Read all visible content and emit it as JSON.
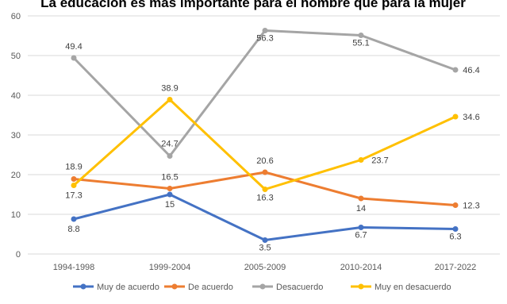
{
  "chart_data": {
    "type": "line",
    "title": "La educación es más importante para el hombre que para la mujer",
    "categories": [
      "1994-1998",
      "1999-2004",
      "2005-2009",
      "2010-2014",
      "2017-2022"
    ],
    "ylim": [
      0,
      60
    ],
    "yticks": [
      0,
      10,
      20,
      30,
      40,
      50,
      60
    ],
    "grid": true,
    "legend_position": "bottom",
    "series": [
      {
        "name": "Muy de acuerdo",
        "color": "#4472C4",
        "values": [
          8.8,
          15,
          3.5,
          6.7,
          6.3
        ]
      },
      {
        "name": "De acuerdo",
        "color": "#ED7D31",
        "values": [
          18.9,
          16.5,
          20.6,
          14,
          12.3
        ]
      },
      {
        "name": "Desacuerdo",
        "color": "#A5A5A5",
        "values": [
          49.4,
          24.7,
          56.3,
          55.1,
          46.4
        ]
      },
      {
        "name": "Muy en desacuerdo",
        "color": "#FFC000",
        "values": [
          17.3,
          38.9,
          16.3,
          23.7,
          34.6
        ]
      }
    ]
  }
}
